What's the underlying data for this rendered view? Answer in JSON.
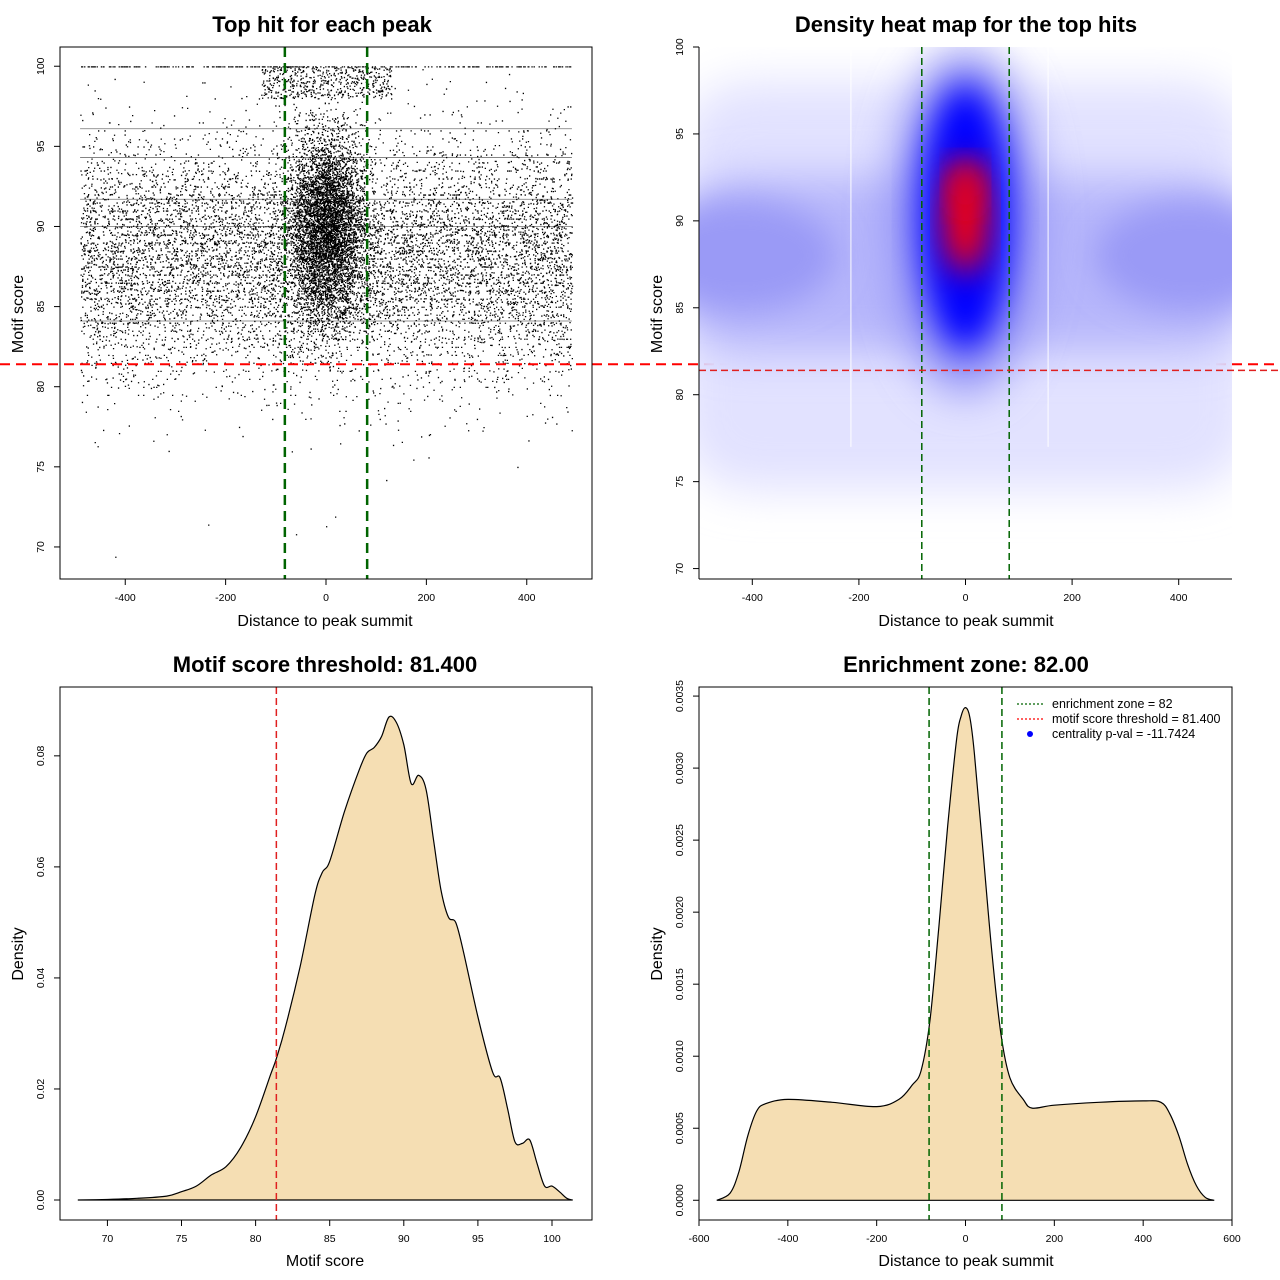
{
  "chart_data": [
    {
      "id": "scatter",
      "type": "scatter",
      "title": "Top hit for each peak",
      "xlabel": "Distance to peak summit",
      "ylabel": "Motif score",
      "xlim": [
        -530,
        530
      ],
      "ylim": [
        68,
        101.2
      ],
      "xticks": [
        -400,
        -200,
        0,
        200,
        400
      ],
      "yticks": [
        70,
        75,
        80,
        85,
        90,
        95,
        100
      ],
      "vlines": [
        -82,
        82
      ],
      "hline": 81.4,
      "point_summary": {
        "x_range": [
          -490,
          490
        ],
        "y_range": [
          69.4,
          100
        ],
        "center_cluster": {
          "x": 0,
          "y": 90,
          "note": "dense cloud between -82 and 82"
        },
        "outliers": [
          {
            "x": -420,
            "y": 69.4
          },
          {
            "x": 0,
            "y": 71.3
          },
          {
            "x": 18,
            "y": 71.9
          },
          {
            "x": -60,
            "y": 70.8
          },
          {
            "x": -235,
            "y": 71.4
          }
        ]
      }
    },
    {
      "id": "heatmap",
      "type": "heatmap",
      "title": "Density heat map for the top hits",
      "xlabel": "Distance to peak summit",
      "ylabel": "Motif score",
      "xlim": [
        -500,
        500
      ],
      "ylim": [
        69.4,
        100.0
      ],
      "xticks": [
        -400,
        -200,
        0,
        200,
        400
      ],
      "yticks": [
        70,
        75,
        80,
        85,
        90,
        95,
        100
      ],
      "vlines": [
        -82,
        82
      ],
      "hline": 81.4,
      "colors": [
        "#ffffff",
        "#0000ff",
        "#ff0000"
      ],
      "hotspots": [
        {
          "x": 0,
          "y": 90.2,
          "level": "max"
        },
        {
          "x": 0,
          "y": 92.0,
          "level": "high"
        },
        {
          "x": -420,
          "y": 88.0,
          "level": "low"
        },
        {
          "x": 420,
          "y": 88.0,
          "level": "low"
        }
      ]
    },
    {
      "id": "score_density",
      "type": "area",
      "title": "Motif score threshold: 81.400",
      "xlabel": "Motif score",
      "ylabel": "Density",
      "xlim": [
        66.8,
        102.7
      ],
      "ylim": [
        -0.0036,
        0.0924
      ],
      "xticks": [
        70,
        75,
        80,
        85,
        90,
        95,
        100
      ],
      "yticks": [
        0.0,
        0.02,
        0.04,
        0.06,
        0.08
      ],
      "ytick_labels": [
        "0.00",
        "0.02",
        "0.04",
        "0.06",
        "0.08"
      ],
      "vline": 81.4,
      "fill": "#f5deb3",
      "x": [
        68.0,
        70.0,
        72.0,
        74.0,
        75.0,
        76.0,
        77.0,
        78.0,
        79.0,
        80.0,
        81.0,
        81.4,
        82.0,
        83.0,
        84.0,
        84.5,
        85.0,
        86.0,
        87.0,
        87.5,
        88.0,
        88.5,
        89.0,
        89.5,
        90.0,
        90.5,
        91.0,
        91.5,
        92.0,
        92.5,
        93.0,
        93.5,
        94.0,
        95.0,
        96.0,
        96.5,
        97.0,
        97.5,
        98.0,
        98.5,
        99.0,
        99.5,
        100.0,
        100.5,
        101.0,
        101.4
      ],
      "y": [
        0.0,
        0.0001,
        0.0003,
        0.0007,
        0.0015,
        0.0025,
        0.0045,
        0.006,
        0.0095,
        0.015,
        0.0225,
        0.0255,
        0.031,
        0.042,
        0.055,
        0.059,
        0.061,
        0.07,
        0.0775,
        0.0805,
        0.0815,
        0.0835,
        0.087,
        0.086,
        0.082,
        0.075,
        0.0765,
        0.074,
        0.065,
        0.056,
        0.051,
        0.05,
        0.045,
        0.033,
        0.023,
        0.022,
        0.0165,
        0.0105,
        0.0102,
        0.0108,
        0.0065,
        0.0025,
        0.0025,
        0.0015,
        0.0003,
        0.0
      ]
    },
    {
      "id": "distance_density",
      "type": "area",
      "title": "Enrichment zone: 82.00",
      "xlabel": "Distance to peak summit",
      "ylabel": "Density",
      "xlim": [
        -600,
        600
      ],
      "ylim": [
        -0.000137,
        0.003563
      ],
      "xticks": [
        -600,
        -400,
        -200,
        0,
        200,
        400,
        600
      ],
      "yticks": [
        0.0,
        0.0005,
        0.001,
        0.0015,
        0.002,
        0.0025,
        0.003,
        0.0035
      ],
      "ytick_labels": [
        "0.0000",
        "0.0005",
        "0.0010",
        "0.0015",
        "0.0020",
        "0.0025",
        "0.0030",
        "0.0035"
      ],
      "vlines": [
        -82,
        82
      ],
      "fill": "#f5deb3",
      "x": [
        -560,
        -530,
        -510,
        -490,
        -470,
        -450,
        -400,
        -300,
        -200,
        -150,
        -120,
        -100,
        -80,
        -60,
        -40,
        -20,
        -10,
        0,
        10,
        20,
        40,
        60,
        80,
        100,
        130,
        150,
        200,
        300,
        400,
        440,
        460,
        480,
        500,
        520,
        540,
        560
      ],
      "y": [
        0.0,
        5e-05,
        0.0002,
        0.00045,
        0.00062,
        0.00067,
        0.0007,
        0.00068,
        0.00065,
        0.0007,
        0.0008,
        0.0009,
        0.00125,
        0.0019,
        0.0026,
        0.0032,
        0.00336,
        0.00342,
        0.00335,
        0.0031,
        0.0024,
        0.0017,
        0.00115,
        0.00085,
        0.0007,
        0.00064,
        0.00066,
        0.00068,
        0.00069,
        0.00068,
        0.0006,
        0.00045,
        0.00025,
        0.0001,
        2e-05,
        0.0
      ],
      "legend": {
        "position": "top-right",
        "entries": [
          {
            "label": "enrichment zone = 82",
            "style": "dotted-line",
            "color": "#006400"
          },
          {
            "label": "motif score threshold = 81.400",
            "style": "dotted-line",
            "color": "#ff0000"
          },
          {
            "label": "centrality p-val = -11.7424",
            "style": "point",
            "color": "#0000ff"
          }
        ]
      }
    }
  ]
}
